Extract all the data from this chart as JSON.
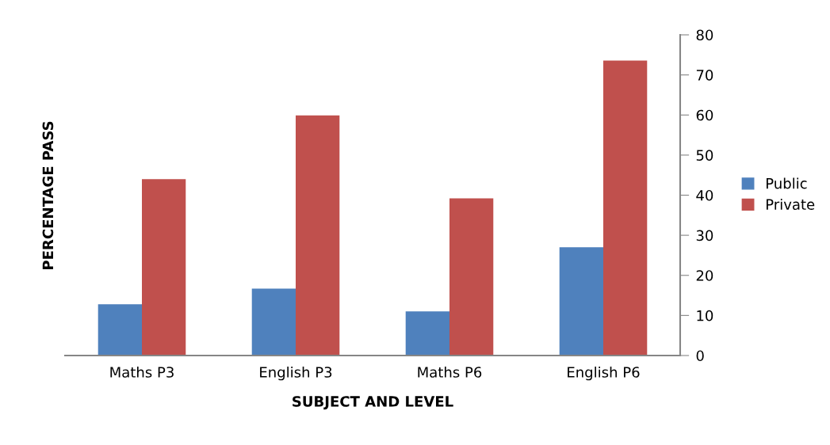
{
  "chart_data": {
    "type": "bar",
    "xlabel": "SUBJECT AND LEVEL",
    "ylabel": "PERCENTAGE PASS",
    "categories": [
      "Maths P3",
      "English P3",
      "Maths P6",
      "English P6"
    ],
    "series": [
      {
        "name": "Public",
        "color": "#4f81bd",
        "values": [
          12.8,
          16.7,
          11.0,
          27.0
        ]
      },
      {
        "name": "Private",
        "color": "#c0504d",
        "values": [
          44.0,
          59.9,
          39.2,
          73.6
        ]
      }
    ],
    "ylim": [
      0,
      80
    ],
    "yticks": [
      0,
      10,
      20,
      30,
      40,
      50,
      60,
      70,
      80
    ],
    "grid": false,
    "legend": "right"
  }
}
